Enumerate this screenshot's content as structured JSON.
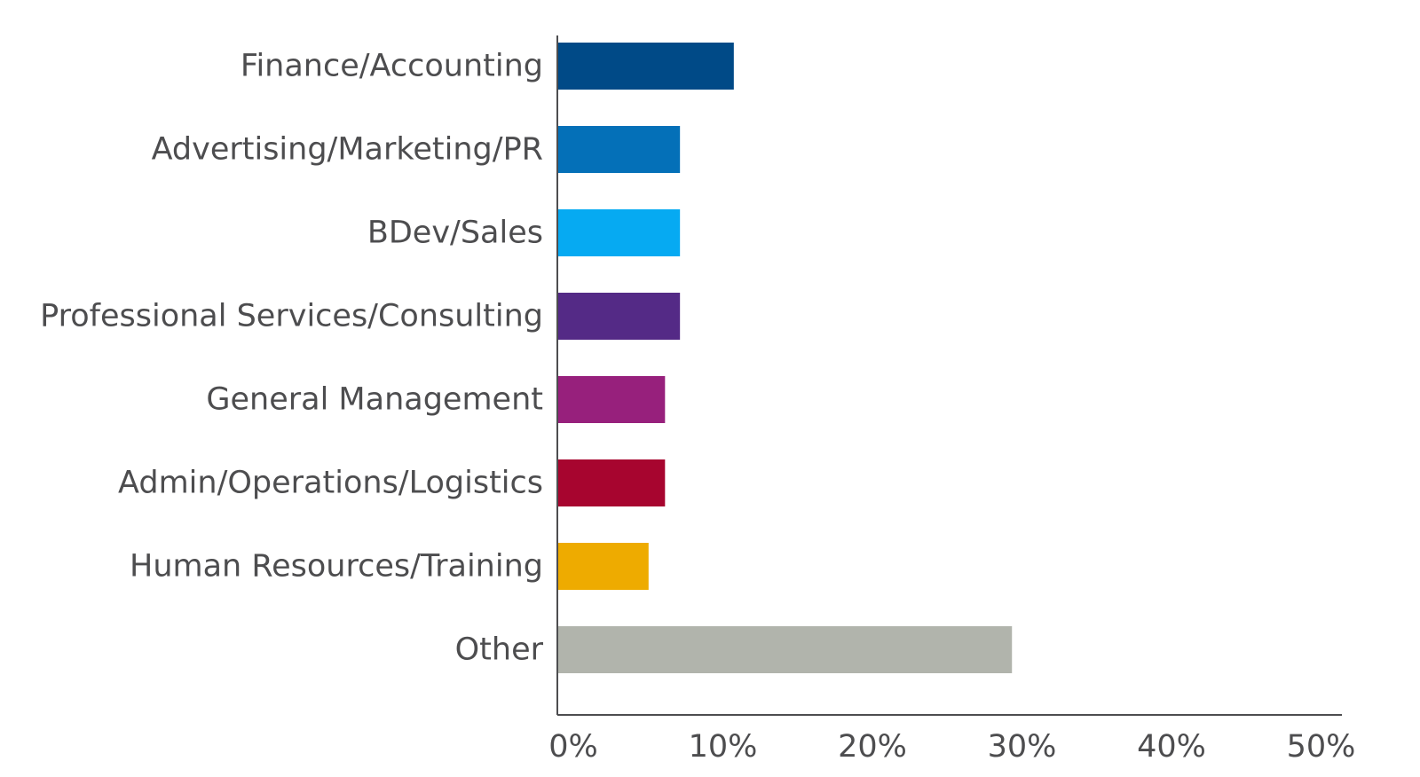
{
  "chart_data": {
    "type": "bar",
    "orientation": "horizontal",
    "title": "",
    "xlabel": "",
    "ylabel": "",
    "categories": [
      "Finance/Accounting",
      "Advertising/Marketing/PR",
      "BDev/Sales",
      "Professional Services/Consulting",
      "General Management",
      "Admin/Operations/Logistics",
      "Human Resources/Training",
      "Other"
    ],
    "values": [
      11.8,
      8.2,
      8.2,
      8.2,
      7.2,
      7.2,
      6.1,
      30.4
    ],
    "colors": [
      "#004a87",
      "#0470b8",
      "#06aaf2",
      "#542a86",
      "#97207c",
      "#a7052f",
      "#eeab00",
      "#b1b4ac"
    ],
    "xlim": [
      0,
      52
    ],
    "xticks": [
      0,
      10,
      20,
      30,
      40,
      50
    ],
    "xtick_labels": [
      "0%",
      "10%",
      "20%",
      "30%",
      "40%",
      "50%"
    ],
    "grid": false,
    "legend": "none"
  }
}
